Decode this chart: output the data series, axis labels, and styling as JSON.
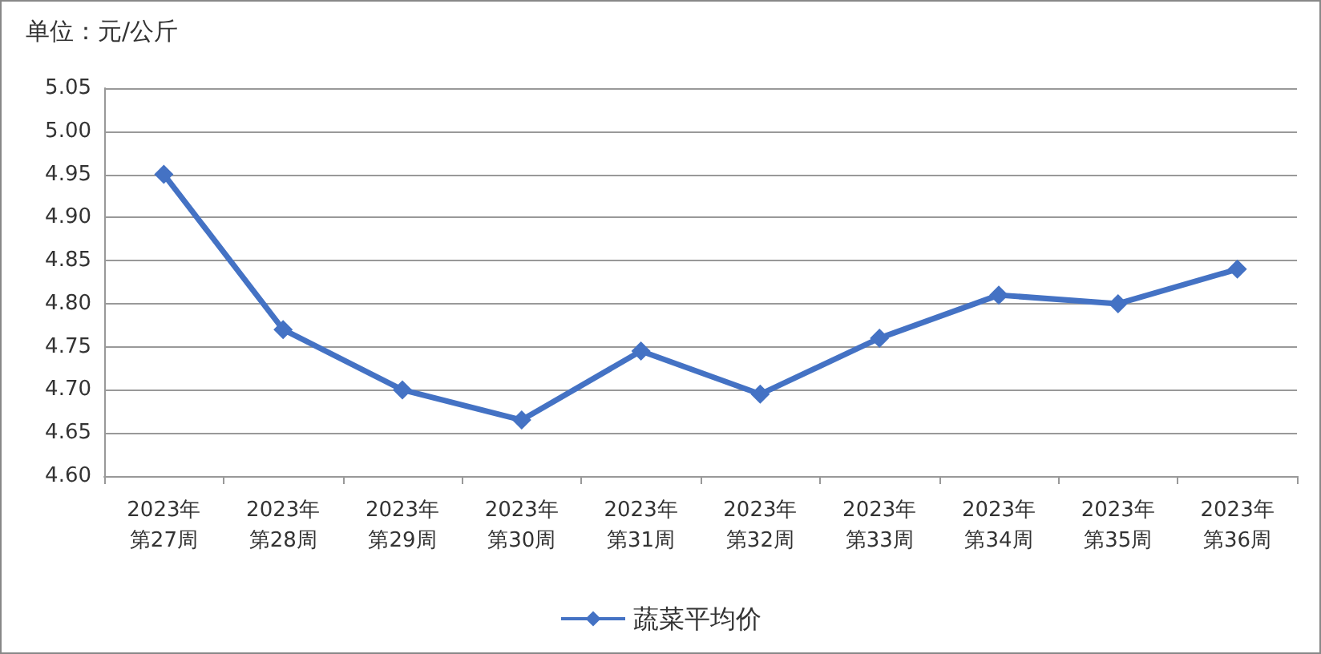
{
  "chart_data": {
    "type": "line",
    "ylabel": "单位：元/公斤",
    "categories": [
      "2023年第27周",
      "2023年第28周",
      "2023年第29周",
      "2023年第30周",
      "2023年第31周",
      "2023年第32周",
      "2023年第33周",
      "2023年第34周",
      "2023年第35周",
      "2023年第36周"
    ],
    "series": [
      {
        "name": "蔬菜平均价",
        "color": "#4472c4",
        "values": [
          4.95,
          4.77,
          4.7,
          4.665,
          4.745,
          4.695,
          4.76,
          4.81,
          4.8,
          4.84
        ]
      }
    ],
    "ylim": [
      4.6,
      5.05
    ],
    "yticks": [
      {
        "value": 4.6,
        "label": "4.60"
      },
      {
        "value": 4.65,
        "label": "4.65"
      },
      {
        "value": 4.7,
        "label": "4.70"
      },
      {
        "value": 4.75,
        "label": "4.75"
      },
      {
        "value": 4.8,
        "label": "4.80"
      },
      {
        "value": 4.85,
        "label": "4.85"
      },
      {
        "value": 4.9,
        "label": "4.90"
      },
      {
        "value": 4.95,
        "label": "4.95"
      },
      {
        "value": 5.0,
        "label": "5.00"
      },
      {
        "value": 5.05,
        "label": "5.05"
      }
    ],
    "grid": "y",
    "legend": "bottom",
    "marker": "diamond",
    "line_style": "solid"
  }
}
